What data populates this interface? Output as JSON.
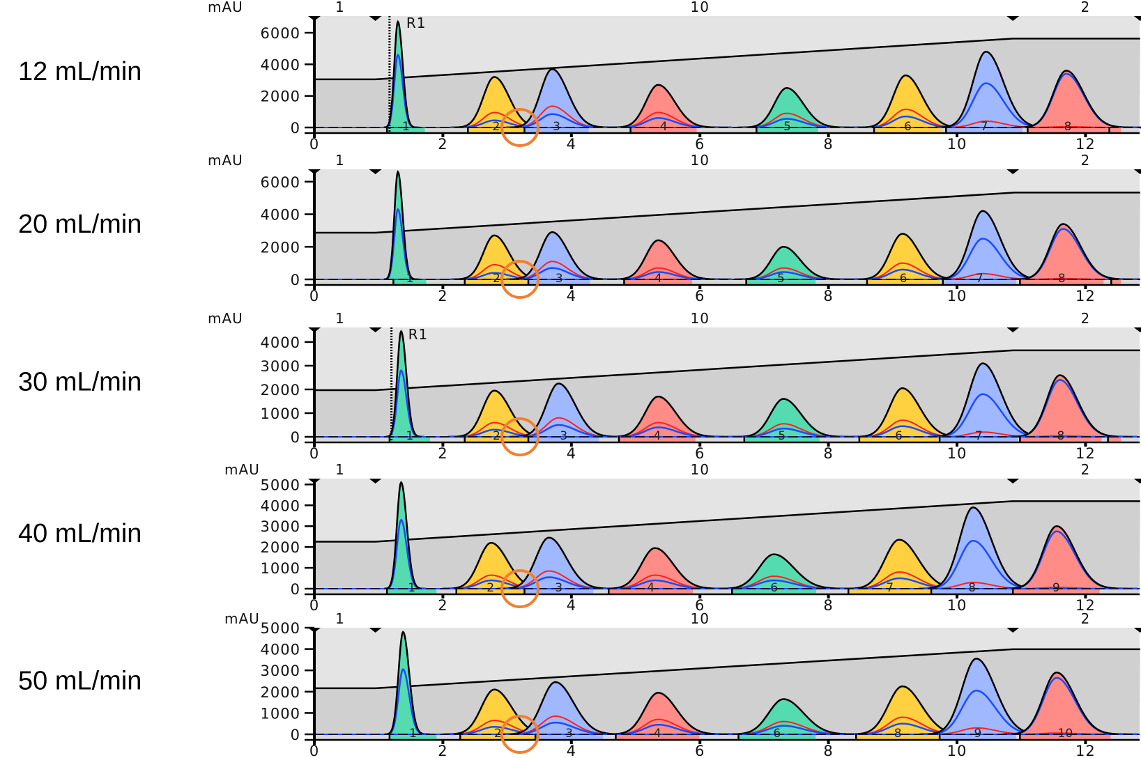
{
  "chart_data": {
    "type": "area",
    "xlim": [
      0,
      12.85
    ],
    "x_ticks": [
      0,
      2,
      4,
      6,
      8,
      10,
      12
    ],
    "ylabel": "mAU",
    "colors": {
      "green": "#55dbb0",
      "yellow": "#ffd040",
      "blue": "#a0b8ff",
      "red": "#ff8c86",
      "blue_trace": "#1a4cff",
      "red_trace": "#ff2020",
      "annotation": "#f08030",
      "upper_bg": "#e4e4e4",
      "lower_bg": "#d0d0d0"
    },
    "top_labels": [
      {
        "t": 0.4,
        "text": "1"
      },
      {
        "t": 6.0,
        "text": "10"
      },
      {
        "t": 12.0,
        "text": "2"
      }
    ],
    "markers": [
      0,
      0.95,
      10.87,
      12.85
    ],
    "annotation_circle": {
      "t": 3.2,
      "value": 0
    },
    "panels": [
      {
        "flow_label": "12 mL/min",
        "y_max": 7060,
        "y_ticks": [
          0,
          2000,
          4000,
          6000
        ],
        "r1": {
          "t": 1.17,
          "label": "R1"
        },
        "gradient": [
          [
            0,
            3050
          ],
          [
            0.95,
            3050
          ],
          [
            10.87,
            5630
          ],
          [
            12.85,
            5630
          ]
        ],
        "peaks": [
          {
            "t": 1.3,
            "h": 6700,
            "s": 0.055,
            "c": "green",
            "red": 0,
            "blue": 4600
          },
          {
            "t": 2.8,
            "h": 3200,
            "s": 0.17,
            "c": "yellow",
            "red": 950,
            "blue": 450
          },
          {
            "t": 3.7,
            "h": 3700,
            "s": 0.18,
            "c": "blue",
            "red": 1350,
            "blue": 850
          },
          {
            "t": 5.35,
            "h": 2700,
            "s": 0.19,
            "c": "red",
            "red": 950,
            "blue": 600
          },
          {
            "t": 7.35,
            "h": 2500,
            "s": 0.19,
            "c": "green",
            "red": 900,
            "blue": 550
          },
          {
            "t": 9.2,
            "h": 3300,
            "s": 0.19,
            "c": "yellow",
            "red": 1150,
            "blue": 700
          },
          {
            "t": 10.45,
            "h": 4800,
            "s": 0.2,
            "c": "blue",
            "red": 400,
            "blue": 2800
          },
          {
            "t": 11.7,
            "h": 3600,
            "s": 0.2,
            "c": "red",
            "red": 50,
            "blue": 3400
          }
        ],
        "fractions": [
          [
            1.13,
            1.72,
            "1",
            "green"
          ],
          [
            2.39,
            3.27,
            "2",
            "yellow"
          ],
          [
            3.27,
            4.27,
            "3",
            "blue"
          ],
          [
            4.92,
            5.95,
            "4",
            "red"
          ],
          [
            6.88,
            7.84,
            "5",
            "green"
          ],
          [
            8.71,
            9.76,
            "6",
            "yellow"
          ],
          [
            9.83,
            11.02,
            "7",
            "blue"
          ],
          [
            11.1,
            12.35,
            "8",
            "red"
          ],
          [
            12.37,
            12.55,
            "",
            "red"
          ]
        ]
      },
      {
        "flow_label": "20 mL/min",
        "y_max": 6760,
        "y_ticks": [
          0,
          2000,
          4000,
          6000
        ],
        "gradient": [
          [
            0,
            2865
          ],
          [
            0.95,
            2865
          ],
          [
            10.9,
            5330
          ],
          [
            12.85,
            5330
          ]
        ],
        "peaks": [
          {
            "t": 1.3,
            "h": 6600,
            "s": 0.055,
            "c": "green",
            "red": 0,
            "blue": 4300
          },
          {
            "t": 2.8,
            "h": 2700,
            "s": 0.17,
            "c": "yellow",
            "red": 900,
            "blue": 400
          },
          {
            "t": 3.7,
            "h": 2900,
            "s": 0.18,
            "c": "blue",
            "red": 1100,
            "blue": 700
          },
          {
            "t": 5.35,
            "h": 2400,
            "s": 0.19,
            "c": "red",
            "red": 700,
            "blue": 450
          },
          {
            "t": 7.3,
            "h": 2000,
            "s": 0.19,
            "c": "green",
            "red": 700,
            "blue": 450
          },
          {
            "t": 9.15,
            "h": 2800,
            "s": 0.19,
            "c": "yellow",
            "red": 1000,
            "blue": 600
          },
          {
            "t": 10.4,
            "h": 4200,
            "s": 0.2,
            "c": "blue",
            "red": 350,
            "blue": 2500
          },
          {
            "t": 11.65,
            "h": 3400,
            "s": 0.2,
            "c": "red",
            "red": 50,
            "blue": 3100
          }
        ],
        "fractions": [
          [
            1.23,
            1.74,
            "1",
            "green"
          ],
          [
            2.34,
            3.33,
            "2",
            "yellow"
          ],
          [
            3.33,
            4.29,
            "3",
            "blue"
          ],
          [
            4.82,
            5.88,
            "4",
            "red"
          ],
          [
            6.72,
            7.8,
            "5",
            "green"
          ],
          [
            8.6,
            9.73,
            "6",
            "yellow"
          ],
          [
            9.78,
            10.92,
            "7",
            "blue"
          ],
          [
            10.98,
            12.28,
            "8",
            "red"
          ],
          [
            12.4,
            12.55,
            "",
            "red"
          ]
        ]
      },
      {
        "flow_label": "30 mL/min",
        "y_max": 4615,
        "y_ticks": [
          0,
          1000,
          2000,
          3000,
          4000
        ],
        "r1": {
          "t": 1.2,
          "label": "R1"
        },
        "gradient": [
          [
            0,
            1970
          ],
          [
            0.95,
            1970
          ],
          [
            10.87,
            3650
          ],
          [
            12.85,
            3650
          ]
        ],
        "peaks": [
          {
            "t": 1.35,
            "h": 4450,
            "s": 0.06,
            "c": "green",
            "red": 0,
            "blue": 2800
          },
          {
            "t": 2.8,
            "h": 1950,
            "s": 0.18,
            "c": "yellow",
            "red": 600,
            "blue": 300
          },
          {
            "t": 3.8,
            "h": 2250,
            "s": 0.19,
            "c": "blue",
            "red": 800,
            "blue": 500
          },
          {
            "t": 5.35,
            "h": 1700,
            "s": 0.2,
            "c": "red",
            "red": 600,
            "blue": 400
          },
          {
            "t": 7.3,
            "h": 1600,
            "s": 0.2,
            "c": "green",
            "red": 550,
            "blue": 350
          },
          {
            "t": 9.15,
            "h": 2050,
            "s": 0.2,
            "c": "yellow",
            "red": 700,
            "blue": 450
          },
          {
            "t": 10.4,
            "h": 3100,
            "s": 0.21,
            "c": "blue",
            "red": 200,
            "blue": 1800
          },
          {
            "t": 11.6,
            "h": 2600,
            "s": 0.2,
            "c": "red",
            "red": 40,
            "blue": 2400
          }
        ],
        "fractions": [
          [
            1.17,
            1.8,
            "1",
            "green"
          ],
          [
            2.34,
            3.33,
            "2",
            "yellow"
          ],
          [
            3.33,
            4.43,
            "3",
            "blue"
          ],
          [
            4.74,
            5.93,
            "4",
            "red"
          ],
          [
            6.69,
            7.86,
            "5",
            "green"
          ],
          [
            8.48,
            9.71,
            "6",
            "yellow"
          ],
          [
            9.73,
            10.95,
            "7",
            "blue"
          ],
          [
            10.98,
            12.25,
            "8",
            "red"
          ],
          [
            12.35,
            12.55,
            "",
            "red"
          ]
        ]
      },
      {
        "flow_label": "40 mL/min",
        "y_max": 5280,
        "y_ticks": [
          0,
          1000,
          2000,
          3000,
          4000,
          5000
        ],
        "gradient": [
          [
            0,
            2257
          ],
          [
            0.95,
            2257
          ],
          [
            10.87,
            4200
          ],
          [
            12.85,
            4200
          ]
        ],
        "peaks": [
          {
            "t": 1.35,
            "h": 5100,
            "s": 0.065,
            "c": "green",
            "red": 0,
            "blue": 3300
          },
          {
            "t": 2.75,
            "h": 2200,
            "s": 0.19,
            "c": "yellow",
            "red": 650,
            "blue": 400
          },
          {
            "t": 3.65,
            "h": 2450,
            "s": 0.2,
            "c": "blue",
            "red": 850,
            "blue": 550
          },
          {
            "t": 5.3,
            "h": 1950,
            "s": 0.21,
            "c": "red",
            "red": 650,
            "blue": 400
          },
          {
            "t": 7.15,
            "h": 1650,
            "s": 0.23,
            "c": "green",
            "red": 600,
            "blue": 400
          },
          {
            "t": 9.1,
            "h": 2350,
            "s": 0.22,
            "c": "yellow",
            "red": 800,
            "blue": 500
          },
          {
            "t": 10.25,
            "h": 3900,
            "s": 0.21,
            "c": "blue",
            "red": 300,
            "blue": 2300
          },
          {
            "t": 11.55,
            "h": 3000,
            "s": 0.21,
            "c": "red",
            "red": 60,
            "blue": 2750
          }
        ],
        "fractions": [
          [
            1.13,
            1.9,
            "1",
            "green"
          ],
          [
            2.21,
            3.27,
            "2",
            "yellow"
          ],
          [
            3.27,
            4.34,
            "3",
            "blue"
          ],
          [
            4.58,
            5.89,
            "4",
            "red"
          ],
          [
            6.5,
            7.81,
            "6",
            "green"
          ],
          [
            8.31,
            9.6,
            "7",
            "yellow"
          ],
          [
            9.6,
            10.87,
            "8",
            "blue"
          ],
          [
            10.87,
            12.22,
            "9",
            "red"
          ]
        ]
      },
      {
        "flow_label": "50 mL/min",
        "y_max": 5000,
        "y_ticks": [
          0,
          1000,
          2000,
          3000,
          4000,
          5000
        ],
        "gradient": [
          [
            0,
            2160
          ],
          [
            0.95,
            2160
          ],
          [
            10.87,
            3990
          ],
          [
            12.85,
            3990
          ]
        ],
        "peaks": [
          {
            "t": 1.38,
            "h": 4800,
            "s": 0.07,
            "c": "green",
            "red": 0,
            "blue": 3050
          },
          {
            "t": 2.8,
            "h": 2100,
            "s": 0.2,
            "c": "yellow",
            "red": 650,
            "blue": 350
          },
          {
            "t": 3.75,
            "h": 2450,
            "s": 0.21,
            "c": "blue",
            "red": 850,
            "blue": 550
          },
          {
            "t": 5.35,
            "h": 1950,
            "s": 0.21,
            "c": "red",
            "red": 700,
            "blue": 450
          },
          {
            "t": 7.3,
            "h": 1650,
            "s": 0.23,
            "c": "green",
            "red": 600,
            "blue": 400
          },
          {
            "t": 9.15,
            "h": 2250,
            "s": 0.22,
            "c": "yellow",
            "red": 800,
            "blue": 500
          },
          {
            "t": 10.3,
            "h": 3550,
            "s": 0.22,
            "c": "blue",
            "red": 300,
            "blue": 2050
          },
          {
            "t": 11.55,
            "h": 2900,
            "s": 0.21,
            "c": "red",
            "red": 60,
            "blue": 2650
          }
        ],
        "fractions": [
          [
            1.17,
            1.9,
            "1",
            "green"
          ],
          [
            2.27,
            3.44,
            "2",
            "yellow"
          ],
          [
            3.44,
            4.49,
            "3",
            "blue"
          ],
          [
            4.69,
            5.99,
            "4",
            "red"
          ],
          [
            6.6,
            7.8,
            "6",
            "green"
          ],
          [
            8.43,
            9.73,
            "8",
            "yellow"
          ],
          [
            9.73,
            10.92,
            "9",
            "blue"
          ],
          [
            10.98,
            12.39,
            "10",
            "red"
          ]
        ]
      }
    ]
  }
}
